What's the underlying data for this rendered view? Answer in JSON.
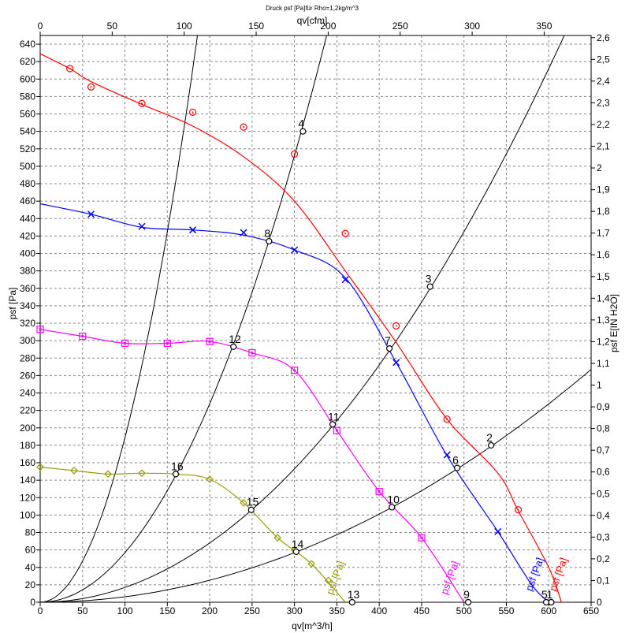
{
  "chart_data": {
    "type": "line",
    "title": "Druck psf  [Pa]für Rho=1,2kg/m^3",
    "xlabel": "qv[m^3/h]",
    "x2label": "qv[cfm]",
    "ylabel": "psf  [Pa]",
    "y2label": "psf  E[IN H2O]",
    "xlim": [
      0,
      650
    ],
    "x2lim": [
      0,
      382.6
    ],
    "ylim": [
      0,
      650
    ],
    "y2lim": [
      0,
      2.61
    ],
    "x_ticks": [
      "0",
      "50",
      "100",
      "150",
      "200",
      "250",
      "300",
      "350",
      "400",
      "450",
      "500",
      "550",
      "600",
      "650"
    ],
    "x2_ticks": [
      "0",
      "50",
      "100",
      "150",
      "200",
      "250",
      "300",
      "350"
    ],
    "y_ticks": [
      "0",
      "20",
      "40",
      "60",
      "80",
      "100",
      "120",
      "140",
      "160",
      "180",
      "200",
      "220",
      "240",
      "260",
      "280",
      "300",
      "320",
      "340",
      "360",
      "380",
      "400",
      "420",
      "440",
      "460",
      "480",
      "500",
      "520",
      "540",
      "560",
      "580",
      "600",
      "620",
      "640"
    ],
    "y2_ticks": [
      "0",
      "0,1",
      "0,2",
      "0,3",
      "0,4",
      "0,5",
      "0,6",
      "0,7",
      "0,8",
      "0,9",
      "1",
      "1,1",
      "1,2",
      "1,3",
      "1,4",
      "1,5",
      "1,6",
      "1,7",
      "1,8",
      "1,9",
      "2",
      "2,1",
      "2,2",
      "2,3",
      "2,4",
      "2,5",
      "2,6"
    ],
    "grid": true,
    "series": [
      {
        "name": "psf [Pa]",
        "color": "#ff0000",
        "marker": "circle",
        "x": [
          0,
          35,
          60,
          120,
          180,
          240,
          300,
          360,
          420,
          480,
          540,
          564,
          600,
          615
        ],
        "y": [
          629,
          612,
          597,
          571,
          546,
          511,
          460,
          380,
          298,
          210,
          148,
          105,
          40,
          0
        ],
        "marker_points": [
          [
            35,
            612
          ],
          [
            60,
            591
          ],
          [
            120,
            572
          ],
          [
            180,
            562
          ],
          [
            240,
            545
          ],
          [
            300,
            514
          ],
          [
            360,
            423
          ],
          [
            420,
            317
          ],
          [
            480,
            210
          ],
          [
            564,
            106
          ]
        ]
      },
      {
        "name": "psf [Pa]",
        "color": "#0000ff",
        "marker": "x",
        "x": [
          0,
          60,
          120,
          180,
          240,
          300,
          360,
          420,
          480,
          540,
          580,
          600
        ],
        "y": [
          457,
          445,
          430,
          427,
          421,
          404,
          372,
          275,
          168,
          81,
          20,
          0
        ],
        "marker_points": [
          [
            60,
            445
          ],
          [
            120,
            431
          ],
          [
            180,
            427
          ],
          [
            240,
            424
          ],
          [
            300,
            404
          ],
          [
            360,
            370
          ],
          [
            420,
            275
          ],
          [
            480,
            169
          ],
          [
            540,
            81
          ]
        ]
      },
      {
        "name": "psf [Pa]",
        "color": "#ff00ff",
        "marker": "square",
        "x": [
          0,
          50,
          100,
          150,
          200,
          250,
          300,
          350,
          400,
          450,
          500
        ],
        "y": [
          313,
          305,
          297,
          297,
          299,
          286,
          266,
          197,
          127,
          74,
          0
        ],
        "marker_points": [
          [
            0,
            313
          ],
          [
            50,
            305
          ],
          [
            100,
            297
          ],
          [
            150,
            297
          ],
          [
            200,
            299
          ],
          [
            250,
            286
          ],
          [
            300,
            266
          ],
          [
            350,
            197
          ],
          [
            400,
            127
          ],
          [
            450,
            74
          ]
        ]
      },
      {
        "name": "psf [Pa]",
        "color": "#999900",
        "marker": "diamond",
        "x": [
          0,
          40,
          80,
          120,
          160,
          200,
          240,
          280,
          320,
          360
        ],
        "y": [
          155,
          151,
          147,
          148,
          147,
          141,
          114,
          74,
          44,
          0
        ],
        "marker_points": [
          [
            0,
            155
          ],
          [
            40,
            151
          ],
          [
            80,
            147
          ],
          [
            120,
            148
          ],
          [
            160,
            147
          ],
          [
            200,
            141
          ],
          [
            240,
            114
          ],
          [
            280,
            74
          ],
          [
            300,
            60
          ],
          [
            320,
            44
          ],
          [
            340,
            25
          ]
        ]
      }
    ],
    "system_curves": [
      {
        "name": "system-curve-a",
        "k": 0.01888,
        "x_max": 340
      },
      {
        "name": "system-curve-b",
        "k": 0.00569,
        "x_max": 610
      },
      {
        "name": "system-curve-c",
        "k": 0.0017,
        "x_max": 648
      },
      {
        "name": "system-curve-d",
        "k": 0.000632,
        "x_max": 650
      }
    ],
    "operating_points": [
      {
        "label": "1",
        "x": 603,
        "y": 0
      },
      {
        "label": "2",
        "x": 532,
        "y": 180
      },
      {
        "label": "3",
        "x": 460,
        "y": 362
      },
      {
        "label": "4",
        "x": 310,
        "y": 540
      },
      {
        "label": "5",
        "x": 597,
        "y": 0
      },
      {
        "label": "6",
        "x": 492,
        "y": 154
      },
      {
        "label": "7",
        "x": 412,
        "y": 291
      },
      {
        "label": "8",
        "x": 270,
        "y": 414
      },
      {
        "label": "9",
        "x": 505,
        "y": 0
      },
      {
        "label": "10",
        "x": 415,
        "y": 109
      },
      {
        "label": "11",
        "x": 345,
        "y": 204
      },
      {
        "label": "12",
        "x": 228,
        "y": 293
      },
      {
        "label": "13",
        "x": 368,
        "y": 0
      },
      {
        "label": "14",
        "x": 302,
        "y": 58
      },
      {
        "label": "15",
        "x": 249,
        "y": 106
      },
      {
        "label": "16",
        "x": 160,
        "y": 147
      }
    ],
    "end_labels": [
      {
        "text": "psf [Pa]",
        "color": "#ff0000",
        "x": 608,
        "y": 12
      },
      {
        "text": "psf [Pa]",
        "color": "#0000ff",
        "x": 580,
        "y": 12
      },
      {
        "text": "psf [Pa]",
        "color": "#ff00ff",
        "x": 480,
        "y": 8
      },
      {
        "text": "psf [Pa]",
        "color": "#999900",
        "x": 345,
        "y": 8
      }
    ]
  }
}
